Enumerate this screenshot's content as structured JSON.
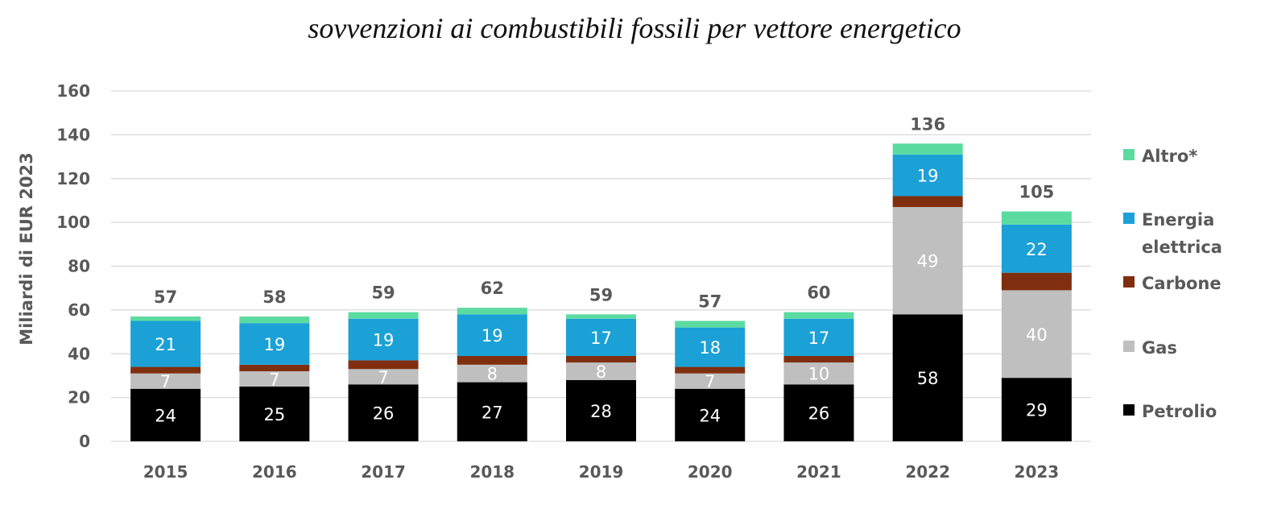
{
  "chart_data": {
    "type": "bar",
    "stacked": true,
    "title": "sovvenzioni ai combustibili fossili per vettore energetico",
    "ylabel": "Miliardi di EUR 2023",
    "xlabel": "",
    "ylim": [
      0,
      160
    ],
    "yticks": [
      0,
      20,
      40,
      60,
      80,
      100,
      120,
      140,
      160
    ],
    "grid": true,
    "legend_position": "right",
    "categories": [
      "2015",
      "2016",
      "2017",
      "2018",
      "2019",
      "2020",
      "2021",
      "2022",
      "2023"
    ],
    "series": [
      {
        "name": "Petrolio",
        "color": "#000000",
        "label_color": "#ffffff",
        "values": [
          24,
          25,
          26,
          27,
          28,
          24,
          26,
          58,
          29
        ],
        "labels": [
          "24",
          "25",
          "26",
          "27",
          "28",
          "24",
          "26",
          "58",
          "29"
        ]
      },
      {
        "name": "Gas",
        "color": "#bfbfbf",
        "label_color": "#ffffff",
        "values": [
          7,
          7,
          7,
          8,
          8,
          7,
          10,
          49,
          40
        ],
        "labels": [
          "7",
          "7",
          "7",
          "8",
          "8",
          "7",
          "10",
          "49",
          "40"
        ]
      },
      {
        "name": "Carbone",
        "color": "#7f2f0f",
        "label_color": "#ffffff",
        "values": [
          3,
          3,
          4,
          4,
          3,
          3,
          3,
          5,
          8
        ],
        "labels": []
      },
      {
        "name": "Energia elettrica",
        "color": "#1ba1d6",
        "label_color": "#ffffff",
        "values": [
          21,
          19,
          19,
          19,
          17,
          18,
          17,
          19,
          22
        ],
        "labels": [
          "21",
          "19",
          "19",
          "19",
          "17",
          "18",
          "17",
          "19",
          "22"
        ]
      },
      {
        "name": "Altro*",
        "color": "#5cdba0",
        "label_color": "#ffffff",
        "values": [
          2,
          3,
          3,
          3,
          2,
          3,
          3,
          5,
          6
        ],
        "labels": []
      }
    ],
    "totals": [
      "57",
      "58",
      "59",
      "62",
      "59",
      "57",
      "60",
      "136",
      "105"
    ],
    "legend": [
      {
        "lines": [
          "Altro*"
        ],
        "color": "#5cdba0"
      },
      {
        "lines": [
          "Energia",
          "elettrica"
        ],
        "color": "#1ba1d6"
      },
      {
        "lines": [
          "Carbone"
        ],
        "color": "#7f2f0f"
      },
      {
        "lines": [
          "Gas"
        ],
        "color": "#bfbfbf"
      },
      {
        "lines": [
          "Petrolio"
        ],
        "color": "#000000"
      }
    ]
  }
}
